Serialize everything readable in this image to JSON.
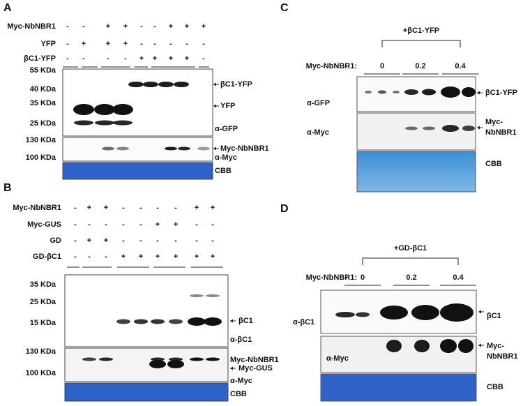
{
  "panels": [
    {
      "letter": "A",
      "rows": [
        {
          "label": "Myc-NbNBR1",
          "signs": [
            "-",
            "-",
            "+",
            "+",
            "-",
            "-",
            "+",
            "+",
            "+"
          ]
        },
        {
          "label": "YFP",
          "signs": [
            "-",
            "+",
            "+",
            "+",
            "-",
            "-",
            "-",
            "-",
            "-"
          ]
        },
        {
          "label": "βC1-YFP",
          "signs": [
            "-",
            "-",
            "-",
            "-",
            "+",
            "+",
            "+",
            "+",
            "-"
          ]
        }
      ],
      "markers": [
        "55 KDa",
        "40 KDa",
        "35 KDa",
        "25 KDa",
        "130 KDa",
        "100 KDa"
      ],
      "right_labels": [
        "βC1-YFP",
        "YFP",
        "α-GFP",
        "Myc-NbNBR1",
        "α-Myc",
        "CBB"
      ]
    },
    {
      "letter": "B",
      "rows": [
        {
          "label": "Myc-NbNBR1",
          "signs": [
            "-",
            "+",
            "+",
            "-",
            "-",
            "-",
            "-",
            "+",
            "+"
          ]
        },
        {
          "label": "Myc-GUS",
          "signs": [
            "-",
            "-",
            "-",
            "-",
            "-",
            "+",
            "+",
            "-",
            "-"
          ]
        },
        {
          "label": "GD",
          "signs": [
            "-",
            "+",
            "+",
            "-",
            "-",
            "-",
            "-",
            "-",
            "-"
          ]
        },
        {
          "label": "GD-βC1",
          "signs": [
            "-",
            "-",
            "-",
            "+",
            "+",
            "+",
            "+",
            "+",
            "+"
          ]
        }
      ],
      "markers": [
        "35 KDa",
        "25 KDa",
        "15 KDa",
        "130 KDa",
        "100 KDa"
      ],
      "right_labels": [
        "βC1",
        "α-βC1",
        "Myc-NbNBR1",
        "Myc-GUS",
        "α-Myc",
        "CBB"
      ]
    },
    {
      "letter": "C",
      "header": "+βC1-YFP",
      "dose_label": "Myc-NbNBR1:",
      "doses": [
        "0",
        "0.2",
        "0.4"
      ],
      "left_labels": [
        "α-GFP",
        "α-Myc"
      ],
      "right_labels": [
        "βC1-YFP",
        "Myc-",
        "NbNBR1",
        "CBB"
      ]
    },
    {
      "letter": "D",
      "header": "+GD-βC1",
      "dose_label": "Myc-NbNBR1:",
      "doses": [
        "0",
        "0.2",
        "0.4"
      ],
      "left_labels": [
        "α-βC1",
        "α-Myc"
      ],
      "right_labels": [
        "βC1",
        "Myc-",
        "NbNBR1",
        "CBB"
      ]
    }
  ]
}
